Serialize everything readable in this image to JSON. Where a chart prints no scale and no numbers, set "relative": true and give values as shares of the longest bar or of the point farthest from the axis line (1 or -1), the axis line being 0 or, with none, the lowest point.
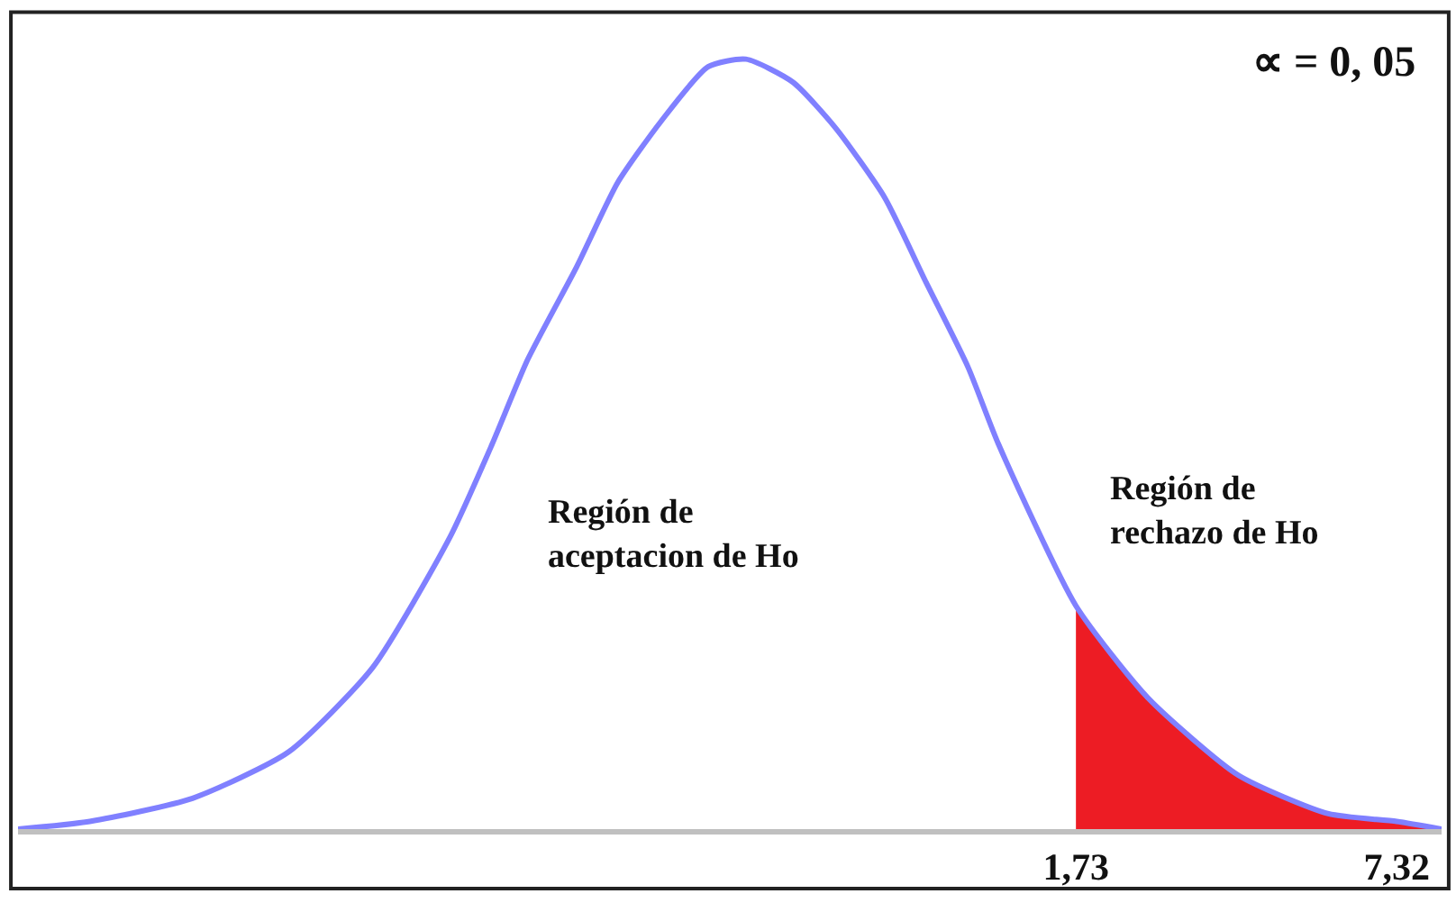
{
  "chart_data": {
    "type": "line",
    "relative": true,
    "x": [
      -16.7,
      -15.45,
      -13.66,
      -11.99,
      -10.52,
      -9.17,
      -8.44,
      -7.82,
      -6.97,
      -6.25,
      -5.49,
      -4.68,
      -4.02,
      -3.2,
      -2.45,
      -1.6,
      -0.88,
      -0.15,
      0.38,
      1.73,
      2.99,
      4.56,
      6.13,
      7.32,
      8.1
    ],
    "series": [
      {
        "color": "#8080ff",
        "values": [
          0.0,
          0.01,
          0.04,
          0.1,
          0.21,
          0.38,
          0.5,
          0.61,
          0.73,
          0.84,
          0.92,
          0.99,
          1.0,
          0.97,
          0.91,
          0.82,
          0.71,
          0.6,
          0.5,
          0.29,
          0.17,
          0.07,
          0.02,
          0.01,
          0.0
        ]
      },
      {
        "type": "area",
        "color": "#ed1c24",
        "x": [
          1.73,
          2.99,
          4.56,
          6.13,
          7.32,
          8.1
        ],
        "values": [
          0.29,
          0.17,
          0.07,
          0.02,
          0.01,
          0.0
        ]
      }
    ],
    "xlim": [
      -16.7,
      8.1
    ],
    "xticks": [
      {
        "value": 1.73,
        "label": "1,73"
      },
      {
        "value": 7.32,
        "label": "7,32"
      }
    ],
    "annotations": [
      "∝ = 0, 05",
      "Región de\naceptacion de Ho",
      "Región de\nrechazo de Ho"
    ],
    "marker": "none",
    "line_style": "solid"
  }
}
